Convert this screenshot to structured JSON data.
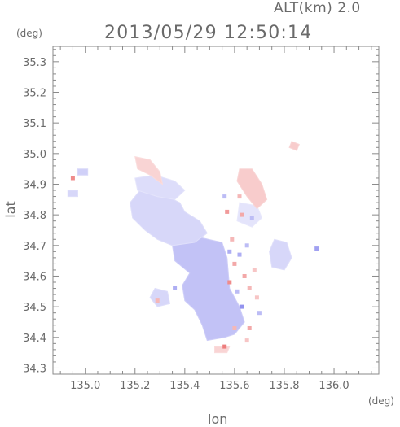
{
  "header": {
    "altitude_label": "ALT(km) 2.0",
    "timestamp": "2013/05/29 12:50:14"
  },
  "chart_data": {
    "type": "heatmap",
    "title": "2013/05/29 12:50:14",
    "subtitle": "ALT(km) 2.0",
    "xlabel": "lon",
    "ylabel": "lat",
    "x_unit": "(deg)",
    "y_unit": "(deg)",
    "xlim": [
      134.87,
      136.18
    ],
    "ylim": [
      34.28,
      35.35
    ],
    "x_ticks": [
      {
        "value": 135.0,
        "label": "135.0"
      },
      {
        "value": 135.2,
        "label": "135.2"
      },
      {
        "value": 135.4,
        "label": "135.4"
      },
      {
        "value": 135.6,
        "label": "135.6"
      },
      {
        "value": 135.8,
        "label": "135.8"
      },
      {
        "value": 136.0,
        "label": "136.0"
      }
    ],
    "y_ticks": [
      {
        "value": 34.3,
        "label": "34.3"
      },
      {
        "value": 34.4,
        "label": "34.4"
      },
      {
        "value": 34.5,
        "label": "34.5"
      },
      {
        "value": 34.6,
        "label": "34.6"
      },
      {
        "value": 34.7,
        "label": "34.7"
      },
      {
        "value": 34.8,
        "label": "34.8"
      },
      {
        "value": 34.9,
        "label": "34.9"
      },
      {
        "value": 35.0,
        "label": "35.0"
      },
      {
        "value": 35.1,
        "label": "35.1"
      },
      {
        "value": 35.2,
        "label": "35.2"
      },
      {
        "value": 35.3,
        "label": "35.3"
      }
    ],
    "grid": false,
    "colors": {
      "negative": "#b3b3f2",
      "positive": "#f2b3b3",
      "strong_negative": "#8c8cf0",
      "strong_positive": "#f08c8c"
    },
    "regions": [
      {
        "sign": "negative",
        "strength": 0.45,
        "points": [
          [
            135.44,
            34.73
          ],
          [
            135.55,
            34.71
          ],
          [
            135.57,
            34.66
          ],
          [
            135.58,
            34.56
          ],
          [
            135.62,
            34.5
          ],
          [
            135.64,
            34.45
          ],
          [
            135.6,
            34.41
          ],
          [
            135.56,
            34.4
          ],
          [
            135.49,
            34.39
          ],
          [
            135.47,
            34.44
          ],
          [
            135.44,
            34.49
          ],
          [
            135.4,
            34.52
          ],
          [
            135.39,
            34.57
          ],
          [
            135.42,
            34.61
          ],
          [
            135.36,
            34.65
          ],
          [
            135.35,
            34.7
          ],
          [
            135.38,
            34.73
          ]
        ]
      },
      {
        "sign": "negative",
        "strength": 0.3,
        "points": [
          [
            135.22,
            34.88
          ],
          [
            135.28,
            34.88
          ],
          [
            135.33,
            34.86
          ],
          [
            135.38,
            34.84
          ],
          [
            135.4,
            34.81
          ],
          [
            135.46,
            34.78
          ],
          [
            135.49,
            34.74
          ],
          [
            135.44,
            34.71
          ],
          [
            135.35,
            34.7
          ],
          [
            135.29,
            34.72
          ],
          [
            135.24,
            34.75
          ],
          [
            135.19,
            34.79
          ],
          [
            135.18,
            34.84
          ]
        ]
      },
      {
        "sign": "negative",
        "strength": 0.25,
        "points": [
          [
            135.2,
            34.92
          ],
          [
            135.28,
            34.93
          ],
          [
            135.36,
            34.91
          ],
          [
            135.4,
            34.88
          ],
          [
            135.36,
            34.85
          ],
          [
            135.29,
            34.86
          ],
          [
            135.21,
            34.88
          ]
        ]
      },
      {
        "sign": "negative",
        "strength": 0.3,
        "points": [
          [
            135.28,
            34.56
          ],
          [
            135.33,
            34.55
          ],
          [
            135.34,
            34.51
          ],
          [
            135.29,
            34.5
          ],
          [
            135.26,
            34.53
          ]
        ]
      },
      {
        "sign": "negative",
        "strength": 0.3,
        "points": [
          [
            135.76,
            34.72
          ],
          [
            135.81,
            34.71
          ],
          [
            135.83,
            34.66
          ],
          [
            135.8,
            34.62
          ],
          [
            135.75,
            34.63
          ],
          [
            135.74,
            34.68
          ]
        ]
      },
      {
        "sign": "negative",
        "strength": 0.2,
        "points": [
          [
            135.62,
            34.84
          ],
          [
            135.69,
            34.83
          ],
          [
            135.71,
            34.79
          ],
          [
            135.67,
            34.76
          ],
          [
            135.61,
            34.78
          ]
        ]
      },
      {
        "sign": "negative",
        "strength": 0.3,
        "points": [
          [
            134.93,
            34.88
          ],
          [
            134.97,
            34.88
          ],
          [
            134.97,
            34.86
          ],
          [
            134.93,
            34.86
          ]
        ]
      },
      {
        "sign": "negative",
        "strength": 0.35,
        "points": [
          [
            134.97,
            34.95
          ],
          [
            135.01,
            34.95
          ],
          [
            135.01,
            34.93
          ],
          [
            134.97,
            34.93
          ]
        ]
      },
      {
        "sign": "positive",
        "strength": 0.3,
        "points": [
          [
            135.2,
            34.99
          ],
          [
            135.26,
            34.98
          ],
          [
            135.3,
            34.94
          ],
          [
            135.31,
            34.9
          ],
          [
            135.26,
            34.93
          ],
          [
            135.21,
            34.95
          ]
        ]
      },
      {
        "sign": "positive",
        "strength": 0.35,
        "points": [
          [
            135.62,
            34.95
          ],
          [
            135.67,
            34.95
          ],
          [
            135.71,
            34.9
          ],
          [
            135.73,
            34.85
          ],
          [
            135.69,
            34.82
          ],
          [
            135.65,
            34.86
          ],
          [
            135.61,
            34.91
          ]
        ]
      },
      {
        "sign": "positive",
        "strength": 0.35,
        "points": [
          [
            135.83,
            35.04
          ],
          [
            135.86,
            35.03
          ],
          [
            135.85,
            35.01
          ],
          [
            135.82,
            35.02
          ]
        ]
      },
      {
        "sign": "positive",
        "strength": 0.3,
        "points": [
          [
            135.52,
            34.37
          ],
          [
            135.58,
            34.37
          ],
          [
            135.57,
            34.35
          ],
          [
            135.52,
            34.35
          ]
        ]
      }
    ],
    "speckles": [
      {
        "lon": 135.6,
        "lat": 34.64,
        "sign": "positive",
        "strength": 0.6
      },
      {
        "lon": 135.62,
        "lat": 34.67,
        "sign": "negative",
        "strength": 0.6
      },
      {
        "lon": 135.64,
        "lat": 34.6,
        "sign": "positive",
        "strength": 0.6
      },
      {
        "lon": 135.58,
        "lat": 34.58,
        "sign": "positive",
        "strength": 0.8
      },
      {
        "lon": 135.61,
        "lat": 34.55,
        "sign": "negative",
        "strength": 0.5
      },
      {
        "lon": 135.66,
        "lat": 34.56,
        "sign": "positive",
        "strength": 0.5
      },
      {
        "lon": 135.63,
        "lat": 34.5,
        "sign": "negative",
        "strength": 0.8
      },
      {
        "lon": 135.6,
        "lat": 34.43,
        "sign": "positive",
        "strength": 0.5
      },
      {
        "lon": 135.66,
        "lat": 34.43,
        "sign": "positive",
        "strength": 0.6
      },
      {
        "lon": 135.7,
        "lat": 34.48,
        "sign": "negative",
        "strength": 0.5
      },
      {
        "lon": 135.69,
        "lat": 34.53,
        "sign": "positive",
        "strength": 0.4
      },
      {
        "lon": 135.56,
        "lat": 34.37,
        "sign": "positive",
        "strength": 0.9
      },
      {
        "lon": 135.65,
        "lat": 34.39,
        "sign": "positive",
        "strength": 0.4
      },
      {
        "lon": 135.57,
        "lat": 34.81,
        "sign": "positive",
        "strength": 0.7
      },
      {
        "lon": 135.63,
        "lat": 34.8,
        "sign": "positive",
        "strength": 0.6
      },
      {
        "lon": 135.67,
        "lat": 34.79,
        "sign": "negative",
        "strength": 0.5
      },
      {
        "lon": 135.59,
        "lat": 34.72,
        "sign": "positive",
        "strength": 0.5
      },
      {
        "lon": 135.65,
        "lat": 34.7,
        "sign": "negative",
        "strength": 0.5
      },
      {
        "lon": 134.95,
        "lat": 34.92,
        "sign": "positive",
        "strength": 0.8
      },
      {
        "lon": 135.56,
        "lat": 34.86,
        "sign": "negative",
        "strength": 0.5
      },
      {
        "lon": 135.62,
        "lat": 34.86,
        "sign": "positive",
        "strength": 0.5
      },
      {
        "lon": 135.93,
        "lat": 34.69,
        "sign": "negative",
        "strength": 0.7
      },
      {
        "lon": 135.29,
        "lat": 34.52,
        "sign": "positive",
        "strength": 0.5
      },
      {
        "lon": 135.36,
        "lat": 34.56,
        "sign": "negative",
        "strength": 0.6
      },
      {
        "lon": 135.68,
        "lat": 34.62,
        "sign": "positive",
        "strength": 0.4
      },
      {
        "lon": 135.58,
        "lat": 34.68,
        "sign": "negative",
        "strength": 0.6
      }
    ]
  }
}
